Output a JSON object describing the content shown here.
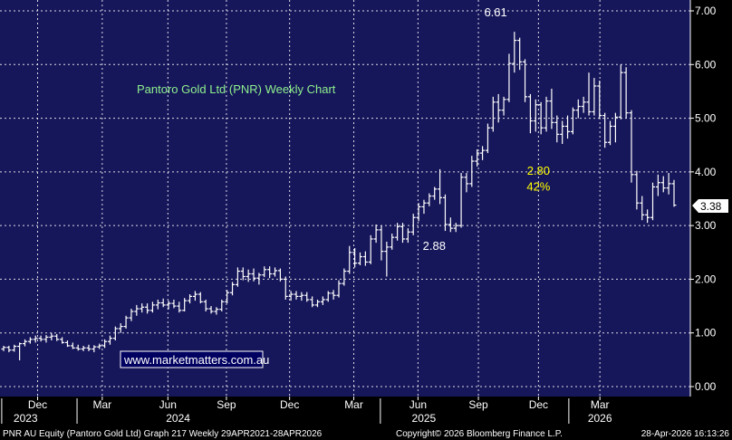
{
  "chart_data": {
    "type": "ohlc",
    "title": "Pantoro Gold Ltd (PNR) Weekly Chart",
    "website": "www.marketmatters.com.au",
    "ylim": [
      0,
      7
    ],
    "y_ticks": [
      "0.00",
      "1.00",
      "2.00",
      "3.00",
      "4.00",
      "5.00",
      "6.00",
      "7.00"
    ],
    "grid": true,
    "colors": {
      "background": "#16165a",
      "bars": "#ffffff",
      "title": "#8ef08e",
      "annotation": "#ffff00",
      "grid": "#ffffff"
    },
    "month_ticks": [
      {
        "label": "Dec",
        "pos": 0.0545
      },
      {
        "label": "Mar",
        "pos": 0.1481
      },
      {
        "label": "Jun",
        "pos": 0.2432
      },
      {
        "label": "Sep",
        "pos": 0.328
      },
      {
        "label": "Dec",
        "pos": 0.4195
      },
      {
        "label": "Mar",
        "pos": 0.5125
      },
      {
        "label": "Jun",
        "pos": 0.6055
      },
      {
        "label": "Sep",
        "pos": 0.693
      },
      {
        "label": "Dec",
        "pos": 0.78
      },
      {
        "label": "Mar",
        "pos": 0.869
      }
    ],
    "year_labels": [
      {
        "label": "2023",
        "pos": 0.0371
      },
      {
        "label": "2024",
        "pos": 0.258
      },
      {
        "label": "2025",
        "pos": 0.614
      },
      {
        "label": "2026",
        "pos": 0.869
      }
    ],
    "year_dividers": [
      0.0025,
      0.1116,
      0.551,
      0.824
    ],
    "annotations": [
      {
        "text": "6.61",
        "color": "#ffffff",
        "pos": 0.718,
        "y": 6.9
      },
      {
        "text": "2.88",
        "color": "#ffffff",
        "pos": 0.629,
        "y": 2.55
      },
      {
        "text": "2.80",
        "color": "#ffff00",
        "pos": 0.78,
        "y": 3.95
      },
      {
        "text": "42%",
        "color": "#ffff00",
        "pos": 0.78,
        "y": 3.65
      }
    ],
    "last_price": "3.38",
    "ohlc": [
      {
        "o": 0.7,
        "h": 0.76,
        "l": 0.66,
        "c": 0.73
      },
      {
        "o": 0.73,
        "h": 0.76,
        "l": 0.64,
        "c": 0.68
      },
      {
        "o": 0.68,
        "h": 0.78,
        "l": 0.65,
        "c": 0.75
      },
      {
        "o": 0.75,
        "h": 0.82,
        "l": 0.49,
        "c": 0.8
      },
      {
        "o": 0.8,
        "h": 0.88,
        "l": 0.75,
        "c": 0.84
      },
      {
        "o": 0.84,
        "h": 0.92,
        "l": 0.8,
        "c": 0.88
      },
      {
        "o": 0.88,
        "h": 0.95,
        "l": 0.82,
        "c": 0.9
      },
      {
        "o": 0.9,
        "h": 0.95,
        "l": 0.84,
        "c": 0.88
      },
      {
        "o": 0.88,
        "h": 0.96,
        "l": 0.82,
        "c": 0.92
      },
      {
        "o": 0.92,
        "h": 1.0,
        "l": 0.86,
        "c": 0.94
      },
      {
        "o": 0.94,
        "h": 0.98,
        "l": 0.85,
        "c": 0.88
      },
      {
        "o": 0.88,
        "h": 0.92,
        "l": 0.8,
        "c": 0.82
      },
      {
        "o": 0.82,
        "h": 0.86,
        "l": 0.74,
        "c": 0.76
      },
      {
        "o": 0.76,
        "h": 0.82,
        "l": 0.7,
        "c": 0.72
      },
      {
        "o": 0.72,
        "h": 0.78,
        "l": 0.67,
        "c": 0.7
      },
      {
        "o": 0.7,
        "h": 0.76,
        "l": 0.66,
        "c": 0.72
      },
      {
        "o": 0.72,
        "h": 0.78,
        "l": 0.66,
        "c": 0.7
      },
      {
        "o": 0.7,
        "h": 0.77,
        "l": 0.64,
        "c": 0.74
      },
      {
        "o": 0.74,
        "h": 0.8,
        "l": 0.7,
        "c": 0.76
      },
      {
        "o": 0.76,
        "h": 0.88,
        "l": 0.72,
        "c": 0.84
      },
      {
        "o": 0.84,
        "h": 0.95,
        "l": 0.78,
        "c": 0.9
      },
      {
        "o": 0.9,
        "h": 1.12,
        "l": 0.86,
        "c": 1.08
      },
      {
        "o": 1.08,
        "h": 1.18,
        "l": 1.0,
        "c": 1.12
      },
      {
        "o": 1.12,
        "h": 1.32,
        "l": 1.08,
        "c": 1.28
      },
      {
        "o": 1.28,
        "h": 1.45,
        "l": 1.22,
        "c": 1.4
      },
      {
        "o": 1.4,
        "h": 1.52,
        "l": 1.32,
        "c": 1.45
      },
      {
        "o": 1.45,
        "h": 1.55,
        "l": 1.38,
        "c": 1.48
      },
      {
        "o": 1.48,
        "h": 1.55,
        "l": 1.36,
        "c": 1.42
      },
      {
        "o": 1.42,
        "h": 1.58,
        "l": 1.38,
        "c": 1.52
      },
      {
        "o": 1.52,
        "h": 1.62,
        "l": 1.44,
        "c": 1.56
      },
      {
        "o": 1.56,
        "h": 1.64,
        "l": 1.48,
        "c": 1.52
      },
      {
        "o": 1.52,
        "h": 1.6,
        "l": 1.44,
        "c": 1.55
      },
      {
        "o": 1.55,
        "h": 1.62,
        "l": 1.46,
        "c": 1.5
      },
      {
        "o": 1.5,
        "h": 1.58,
        "l": 1.38,
        "c": 1.42
      },
      {
        "o": 1.42,
        "h": 1.65,
        "l": 1.4,
        "c": 1.6
      },
      {
        "o": 1.6,
        "h": 1.72,
        "l": 1.55,
        "c": 1.68
      },
      {
        "o": 1.68,
        "h": 1.78,
        "l": 1.6,
        "c": 1.72
      },
      {
        "o": 1.72,
        "h": 1.76,
        "l": 1.55,
        "c": 1.58
      },
      {
        "o": 1.58,
        "h": 1.62,
        "l": 1.4,
        "c": 1.45
      },
      {
        "o": 1.45,
        "h": 1.5,
        "l": 1.36,
        "c": 1.4
      },
      {
        "o": 1.4,
        "h": 1.48,
        "l": 1.34,
        "c": 1.44
      },
      {
        "o": 1.44,
        "h": 1.62,
        "l": 1.4,
        "c": 1.58
      },
      {
        "o": 1.58,
        "h": 1.8,
        "l": 1.55,
        "c": 1.75
      },
      {
        "o": 1.75,
        "h": 1.95,
        "l": 1.7,
        "c": 1.9
      },
      {
        "o": 1.9,
        "h": 2.22,
        "l": 1.86,
        "c": 2.15
      },
      {
        "o": 2.15,
        "h": 2.22,
        "l": 1.98,
        "c": 2.05
      },
      {
        "o": 2.05,
        "h": 2.18,
        "l": 1.95,
        "c": 2.1
      },
      {
        "o": 2.1,
        "h": 2.2,
        "l": 1.96,
        "c": 2.02
      },
      {
        "o": 2.02,
        "h": 2.12,
        "l": 1.9,
        "c": 2.08
      },
      {
        "o": 2.08,
        "h": 2.24,
        "l": 2.04,
        "c": 2.18
      },
      {
        "o": 2.18,
        "h": 2.24,
        "l": 2.02,
        "c": 2.1
      },
      {
        "o": 2.1,
        "h": 2.22,
        "l": 2.05,
        "c": 2.16
      },
      {
        "o": 2.16,
        "h": 2.2,
        "l": 1.96,
        "c": 2.0
      },
      {
        "o": 2.0,
        "h": 2.05,
        "l": 1.62,
        "c": 1.68
      },
      {
        "o": 1.68,
        "h": 1.78,
        "l": 1.6,
        "c": 1.72
      },
      {
        "o": 1.72,
        "h": 1.78,
        "l": 1.62,
        "c": 1.68
      },
      {
        "o": 1.68,
        "h": 1.76,
        "l": 1.6,
        "c": 1.7
      },
      {
        "o": 1.7,
        "h": 1.76,
        "l": 1.58,
        "c": 1.62
      },
      {
        "o": 1.62,
        "h": 1.68,
        "l": 1.48,
        "c": 1.52
      },
      {
        "o": 1.52,
        "h": 1.62,
        "l": 1.48,
        "c": 1.58
      },
      {
        "o": 1.58,
        "h": 1.68,
        "l": 1.52,
        "c": 1.62
      },
      {
        "o": 1.62,
        "h": 1.78,
        "l": 1.58,
        "c": 1.74
      },
      {
        "o": 1.74,
        "h": 1.8,
        "l": 1.62,
        "c": 1.7
      },
      {
        "o": 1.7,
        "h": 1.98,
        "l": 1.66,
        "c": 1.92
      },
      {
        "o": 1.92,
        "h": 2.2,
        "l": 1.88,
        "c": 2.15
      },
      {
        "o": 2.15,
        "h": 2.62,
        "l": 2.1,
        "c": 2.5
      },
      {
        "o": 2.5,
        "h": 2.58,
        "l": 2.22,
        "c": 2.3
      },
      {
        "o": 2.3,
        "h": 2.5,
        "l": 2.26,
        "c": 2.42
      },
      {
        "o": 2.42,
        "h": 2.52,
        "l": 2.25,
        "c": 2.32
      },
      {
        "o": 2.32,
        "h": 2.82,
        "l": 2.28,
        "c": 2.75
      },
      {
        "o": 2.75,
        "h": 3.02,
        "l": 2.68,
        "c": 2.92
      },
      {
        "o": 2.92,
        "h": 3.0,
        "l": 2.35,
        "c": 2.52
      },
      {
        "o": 2.52,
        "h": 2.7,
        "l": 2.05,
        "c": 2.6
      },
      {
        "o": 2.6,
        "h": 2.85,
        "l": 2.55,
        "c": 2.78
      },
      {
        "o": 2.78,
        "h": 3.05,
        "l": 2.72,
        "c": 2.98
      },
      {
        "o": 2.98,
        "h": 3.05,
        "l": 2.68,
        "c": 2.75
      },
      {
        "o": 2.75,
        "h": 2.95,
        "l": 2.68,
        "c": 2.88
      },
      {
        "o": 2.88,
        "h": 3.22,
        "l": 2.82,
        "c": 3.15
      },
      {
        "o": 3.15,
        "h": 3.42,
        "l": 3.08,
        "c": 3.35
      },
      {
        "o": 3.35,
        "h": 3.48,
        "l": 3.22,
        "c": 3.42
      },
      {
        "o": 3.42,
        "h": 3.6,
        "l": 3.36,
        "c": 3.55
      },
      {
        "o": 3.55,
        "h": 3.72,
        "l": 3.48,
        "c": 3.68
      },
      {
        "o": 3.68,
        "h": 4.05,
        "l": 3.4,
        "c": 3.52
      },
      {
        "o": 3.52,
        "h": 3.58,
        "l": 2.9,
        "c": 3.02
      },
      {
        "o": 3.02,
        "h": 3.15,
        "l": 2.88,
        "c": 2.95
      },
      {
        "o": 2.95,
        "h": 3.05,
        "l": 2.88,
        "c": 3.0
      },
      {
        "o": 3.0,
        "h": 3.98,
        "l": 2.96,
        "c": 3.9
      },
      {
        "o": 3.9,
        "h": 3.98,
        "l": 3.62,
        "c": 3.78
      },
      {
        "o": 3.78,
        "h": 4.3,
        "l": 3.72,
        "c": 4.2
      },
      {
        "o": 4.2,
        "h": 4.42,
        "l": 4.1,
        "c": 4.35
      },
      {
        "o": 4.35,
        "h": 4.48,
        "l": 4.22,
        "c": 4.4
      },
      {
        "o": 4.4,
        "h": 4.9,
        "l": 4.35,
        "c": 4.82
      },
      {
        "o": 4.82,
        "h": 5.4,
        "l": 4.75,
        "c": 5.3
      },
      {
        "o": 5.3,
        "h": 5.45,
        "l": 4.92,
        "c": 5.15
      },
      {
        "o": 5.15,
        "h": 5.4,
        "l": 5.05,
        "c": 5.35
      },
      {
        "o": 5.35,
        "h": 6.2,
        "l": 5.3,
        "c": 6.02
      },
      {
        "o": 6.02,
        "h": 6.61,
        "l": 5.85,
        "c": 6.45
      },
      {
        "o": 6.45,
        "h": 6.5,
        "l": 5.9,
        "c": 6.05
      },
      {
        "o": 6.05,
        "h": 6.1,
        "l": 5.3,
        "c": 5.4
      },
      {
        "o": 5.4,
        "h": 5.45,
        "l": 4.72,
        "c": 4.95
      },
      {
        "o": 4.95,
        "h": 5.35,
        "l": 4.75,
        "c": 5.25
      },
      {
        "o": 5.25,
        "h": 5.3,
        "l": 4.7,
        "c": 4.82
      },
      {
        "o": 4.82,
        "h": 5.4,
        "l": 4.75,
        "c": 5.32
      },
      {
        "o": 5.32,
        "h": 5.55,
        "l": 4.8,
        "c": 4.92
      },
      {
        "o": 4.92,
        "h": 5.05,
        "l": 4.55,
        "c": 4.7
      },
      {
        "o": 4.7,
        "h": 4.95,
        "l": 4.52,
        "c": 4.85
      },
      {
        "o": 4.85,
        "h": 5.05,
        "l": 4.62,
        "c": 4.75
      },
      {
        "o": 4.75,
        "h": 5.2,
        "l": 4.7,
        "c": 5.15
      },
      {
        "o": 5.15,
        "h": 5.35,
        "l": 5.0,
        "c": 5.22
      },
      {
        "o": 5.22,
        "h": 5.4,
        "l": 5.1,
        "c": 5.3
      },
      {
        "o": 5.3,
        "h": 5.85,
        "l": 5.05,
        "c": 5.12
      },
      {
        "o": 5.12,
        "h": 5.75,
        "l": 5.05,
        "c": 5.6
      },
      {
        "o": 5.6,
        "h": 5.7,
        "l": 5.0,
        "c": 5.05
      },
      {
        "o": 5.05,
        "h": 5.1,
        "l": 4.45,
        "c": 4.55
      },
      {
        "o": 4.55,
        "h": 4.95,
        "l": 4.5,
        "c": 4.85
      },
      {
        "o": 4.85,
        "h": 5.1,
        "l": 4.55,
        "c": 5.02
      },
      {
        "o": 5.02,
        "h": 6.0,
        "l": 4.98,
        "c": 5.85
      },
      {
        "o": 5.85,
        "h": 5.95,
        "l": 5.0,
        "c": 5.1
      },
      {
        "o": 5.1,
        "h": 5.15,
        "l": 3.8,
        "c": 3.95
      },
      {
        "o": 3.95,
        "h": 4.02,
        "l": 3.3,
        "c": 3.42
      },
      {
        "o": 3.42,
        "h": 3.55,
        "l": 3.1,
        "c": 3.2
      },
      {
        "o": 3.2,
        "h": 3.3,
        "l": 3.05,
        "c": 3.15
      },
      {
        "o": 3.15,
        "h": 3.8,
        "l": 3.1,
        "c": 3.72
      },
      {
        "o": 3.72,
        "h": 3.95,
        "l": 3.55,
        "c": 3.8
      },
      {
        "o": 3.8,
        "h": 3.92,
        "l": 3.62,
        "c": 3.7
      },
      {
        "o": 3.7,
        "h": 3.98,
        "l": 3.58,
        "c": 3.78
      },
      {
        "o": 3.78,
        "h": 3.85,
        "l": 3.35,
        "c": 3.38
      }
    ],
    "footer": {
      "left": "PNR AU Equity (Pantoro Gold Ltd) Graph 217 Weekly 29APR2021-28APR2026",
      "center": "Copyright© 2026 Bloomberg Finance L.P.",
      "right": "28-Apr-2026 16:13:26"
    }
  }
}
